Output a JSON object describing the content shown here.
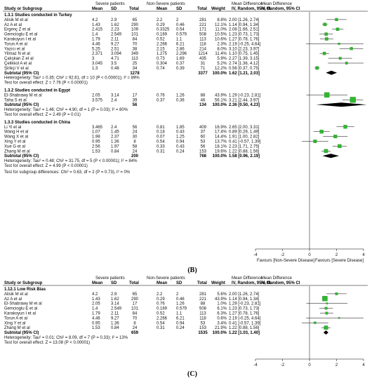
{
  "panel_b": {
    "label": "(B)",
    "header": {
      "group_severe": "Severe patients",
      "group_nonsevere": "Non-Severe patients",
      "md_title": "Mean Difference",
      "study": "Study or Subgroup",
      "mean": "Mean",
      "sd": "SD",
      "total": "Total",
      "weight": "Weight",
      "ci_left": "IV, Random, 95% CI",
      "ci_right": "IV, Random, 95% CI"
    },
    "subgroups": [
      {
        "title": "1.3.1 Studies conducted in Turkey",
        "rows": [
          {
            "study": "Alisik M et al",
            "m1": "4.2",
            "sd1": "2.9",
            "n1": "65",
            "m2": "2.2",
            "sd2": "2",
            "n2": "281",
            "w": "8.8%",
            "ci": "2.00 [1.26, 2.74]",
            "md": 2.0,
            "lo": 1.26,
            "hi": 2.74
          },
          {
            "study": "Az A et al",
            "m1": "1.43",
            "sd1": "1.62",
            "n1": "290",
            "m2": "0.29",
            "sd2": "0.46",
            "n2": "221",
            "w": "12.1%",
            "ci": "1.14 [0.94, 1.34]",
            "md": 1.14,
            "lo": 0.94,
            "hi": 1.34
          },
          {
            "study": "Ergenç Z et al",
            "m1": "2.415",
            "sd1": "2.23",
            "n1": "109",
            "m2": "0.3325",
            "sd2": "0.54",
            "n2": "171",
            "w": "11.0%",
            "ci": "2.08 [1.66, 2.51]",
            "md": 2.08,
            "lo": 1.66,
            "hi": 2.51
          },
          {
            "study": "Gemcioglu E et al",
            "m1": "1.4",
            "sd1": "2.549",
            "n1": "101",
            "m2": "0.169",
            "sd2": "0.579",
            "n2": "508",
            "w": "10.5%",
            "ci": "1.23 [0.73, 1.73]",
            "md": 1.23,
            "lo": 0.73,
            "hi": 1.73
          },
          {
            "study": "Karakoyun I et al",
            "m1": "1.79",
            "sd1": "2.11",
            "n1": "84",
            "m2": "0.52",
            "sd2": "1.1",
            "n2": "113",
            "w": "10.6%",
            "ci": "1.27 [0.78, 1.76]",
            "md": 1.27,
            "lo": 0.78,
            "hi": 1.76
          },
          {
            "study": "Torun A et al",
            "m1": "4.46",
            "sd1": "9.27",
            "n1": "70",
            "m2": "2.266",
            "sd2": "6.21",
            "n2": "118",
            "w": "2.3%",
            "ci": "2.19 [-0.25, 4.64]",
            "md": 2.19,
            "lo": -0.25,
            "hi": 4.64
          },
          {
            "study": "Yazıcı et al",
            "m1": "5.25",
            "sd1": "2.51",
            "n1": "38",
            "m2": "2.15",
            "sd2": "2.86",
            "n2": "214",
            "w": "8.0%",
            "ci": "3.10 [2.23, 3.97]",
            "md": 3.1,
            "lo": 2.23,
            "hi": 3.97
          },
          {
            "study": "Yilmaz N et al",
            "m1": "2.371",
            "sd1": "3.094",
            "n1": "349",
            "m2": "1.275",
            "sd2": "2.296",
            "n2": "1214",
            "w": "11.4%",
            "ci": "1.10 [0.75, 1.45]",
            "md": 1.1,
            "lo": 0.75,
            "hi": 1.45
          },
          {
            "study": "Çalışkan Z et al",
            "m1": "3",
            "sd1": "4.71",
            "n1": "113",
            "m2": "0.73",
            "sd2": "1.69",
            "n2": "435",
            "w": "5.9%",
            "ci": "2.27 [1.39, 3.15]",
            "md": 2.27,
            "lo": 1.39,
            "hi": 3.15
          },
          {
            "study": "Çelikkol A et al",
            "m1": "3.045",
            "sd1": "3.5",
            "n1": "25",
            "m2": "0.304",
            "sd2": "0.37",
            "n2": "31",
            "w": "5.2%",
            "ci": "2.74 [1.36, 4.12]",
            "md": 2.74,
            "lo": 1.36,
            "hi": 4.12
          },
          {
            "study": "Şirikçi V et al",
            "m1": "1.3",
            "sd1": "0.48",
            "n1": "34",
            "m2": "0.74",
            "sd2": "0.39",
            "n2": "71",
            "w": "12.2%",
            "ci": "0.56 [0.37, 0.75]",
            "md": 0.56,
            "lo": 0.37,
            "hi": 0.75
          }
        ],
        "subtotal": {
          "label": "Subtotal (95% CI)",
          "n1": "1278",
          "n2": "3377",
          "w": "100.0%",
          "ci": "1.62 [1.21, 2.03]",
          "md": 1.62,
          "lo": 1.21,
          "hi": 2.03
        },
        "heterogeneity": "Heterogeneity: Tau² = 0.35; Chi² = 92.61, df = 10 (P < 0.00001); I² = 89%",
        "overall": "Test for overall effect: Z = 7.76 (P < 0.00001)"
      },
      {
        "title": "1.3.2 Studies conducted in Egypt",
        "rows": [
          {
            "study": "El-Shabrawy M et al",
            "m1": "2.05",
            "sd1": "3.14",
            "n1": "17",
            "m2": "0.76",
            "sd2": "1.26",
            "n2": "88",
            "w": "43.9%",
            "ci": "1.29 [-0.23, 2.81]",
            "md": 1.29,
            "lo": -0.23,
            "hi": 2.81
          },
          {
            "study": "Taha S et al",
            "m1": "3.575",
            "sd1": "2.4",
            "n1": "39",
            "m2": "0.37",
            "sd2": "0.36",
            "n2": "46",
            "w": "56.1%",
            "ci": "3.21 [2.44, 3.97]",
            "md": 3.21,
            "lo": 2.44,
            "hi": 3.97
          }
        ],
        "subtotal": {
          "label": "Subtotal (95% CI)",
          "n1": "56",
          "n2": "134",
          "w": "100.0%",
          "ci": "2.36 [0.50, 4.23]",
          "md": 2.36,
          "lo": 0.5,
          "hi": 4.23
        },
        "heterogeneity": "Heterogeneity: Tau² = 1.46; Chi² = 4.90, df = 1 (P = 0.03); I² = 80%",
        "overall": "Test for overall effect: Z = 2.49 (P = 0.01)"
      },
      {
        "title": "1.3.3 Studies conducted in China",
        "rows": [
          {
            "study": "Li Yi et al",
            "m1": "3.465",
            "sd1": "2.4",
            "n1": "56",
            "m2": "0.81",
            "sd2": "1.85",
            "n2": "409",
            "w": "16.9%",
            "ci": "2.65 [2.00, 3.31]",
            "md": 2.65,
            "lo": 2.0,
            "hi": 3.31
          },
          {
            "study": "Wang H et al",
            "m1": "1.07",
            "sd1": "1.45",
            "n1": "24",
            "m2": "0.18",
            "sd2": "0.43",
            "n2": "37",
            "w": "17.4%",
            "ci": "0.89 [0.29, 1.49]",
            "md": 0.89,
            "lo": 0.29,
            "hi": 1.49
          },
          {
            "study": "Wang X et al",
            "m1": "1.98",
            "sd1": "2.37",
            "n1": "30",
            "m2": "0.07",
            "sd2": "1.25",
            "n2": "60",
            "w": "14.4%",
            "ci": "1.91 [1.00, 2.82]",
            "md": 1.91,
            "lo": 1.0,
            "hi": 2.82
          },
          {
            "study": "Xing Y et al",
            "m1": "0.95",
            "sd1": "1.36",
            "n1": "8",
            "m2": "0.54",
            "sd2": "0.94",
            "n2": "53",
            "w": "13.7%",
            "ci": "0.41 [-0.57, 1.39]",
            "md": 0.41,
            "lo": -0.57,
            "hi": 1.39
          },
          {
            "study": "Xue G et al",
            "m1": "2.56",
            "sd1": "1.97",
            "n1": "58",
            "m2": "0.33",
            "sd2": "0.43",
            "n2": "56",
            "w": "18.1%",
            "ci": "2.23 [1.71, 2.75]",
            "md": 2.23,
            "lo": 1.71,
            "hi": 2.75
          },
          {
            "study": "Zhang M et al",
            "m1": "1.53",
            "sd1": "0.84",
            "n1": "24",
            "m2": "0.31",
            "sd2": "0.24",
            "n2": "153",
            "w": "19.6%",
            "ci": "1.22 [0.88, 1.56]",
            "md": 1.22,
            "lo": 0.88,
            "hi": 1.56
          }
        ],
        "subtotal": {
          "label": "Subtotal (95% CI)",
          "n1": "200",
          "n2": "768",
          "w": "100.0%",
          "ci": "1.58 [0.96, 2.19]",
          "md": 1.58,
          "lo": 0.96,
          "hi": 2.19
        },
        "heterogeneity": "Heterogeneity: Tau² = 0.48; Chi² = 31.75, df = 5 (P < 0.00001); I² = 84%",
        "overall": "Test for overall effect: Z = 4.99 (P < 0.00001)"
      }
    ],
    "subgroup_diff": "Test for subgroup differences: Chi² = 0.63, df = 2 (P = 0.73), I² = 0%",
    "axis": {
      "min": -4,
      "max": 4,
      "ticks": [
        "-4",
        "-2",
        "0",
        "2",
        "4"
      ],
      "tick_values": [
        -4,
        -2,
        0,
        2,
        4
      ],
      "left_label": "Favours [Non-Severe Disease]",
      "right_label": "Favours [Severe Disease]"
    }
  },
  "panel_c": {
    "label": "(C)",
    "header": {
      "group_severe": "Severe patients",
      "group_nonsevere": "Non-Severe patients",
      "md_title": "Mean Difference",
      "study": "Study or Subgroup",
      "mean": "Mean",
      "sd": "SD",
      "total": "Total",
      "weight": "Weight",
      "ci_left": "IV, Random, 95% CI",
      "ci_right": "IV, Random, 95% CI"
    },
    "subgroups": [
      {
        "title": "1.12.1 Low Risk Bias",
        "rows": [
          {
            "study": "Alisik M et al",
            "m1": "4.2",
            "sd1": "2.9",
            "n1": "65",
            "m2": "2.2",
            "sd2": "2",
            "n2": "281",
            "w": "5.6%",
            "ci": "2.00 [1.26, 2.74]",
            "md": 2.0,
            "lo": 1.26,
            "hi": 2.74
          },
          {
            "study": "Az A et al",
            "m1": "1.43",
            "sd1": "1.62",
            "n1": "290",
            "m2": "0.29",
            "sd2": "0.46",
            "n2": "221",
            "w": "43.9%",
            "ci": "1.14 [0.94, 1.34]",
            "md": 1.14,
            "lo": 0.94,
            "hi": 1.34
          },
          {
            "study": "El-Shabrawy M et al",
            "m1": "2.05",
            "sd1": "3.14",
            "n1": "17",
            "m2": "0.76",
            "sd2": "1.26",
            "n2": "88",
            "w": "1.0%",
            "ci": "1.29 [-0.23, 2.81]",
            "md": 1.29,
            "lo": -0.23,
            "hi": 2.81
          },
          {
            "study": "Gemcioglu E et al",
            "m1": "1.4",
            "sd1": "2.549",
            "n1": "101",
            "m2": "0.169",
            "sd2": "0.579",
            "n2": "508",
            "w": "6.1%",
            "ci": "1.23 [0.73, 1.73]",
            "md": 1.23,
            "lo": 0.73,
            "hi": 1.73
          },
          {
            "study": "Karakoyun I et al",
            "m1": "1.79",
            "sd1": "2.11",
            "n1": "84",
            "m2": "0.52",
            "sd2": "1.1",
            "n2": "113",
            "w": "6.3%",
            "ci": "1.27 [0.78, 1.76]",
            "md": 1.27,
            "lo": 0.78,
            "hi": 1.76
          },
          {
            "study": "Torun A et al",
            "m1": "4.46",
            "sd1": "9.27",
            "n1": "70",
            "m2": "2.266",
            "sd2": "6.21",
            "n2": "118",
            "w": "0.6%",
            "ci": "2.19 [-0.25, 4.64]",
            "md": 2.19,
            "lo": -0.25,
            "hi": 4.64
          },
          {
            "study": "Xing Y et al",
            "m1": "0.95",
            "sd1": "1.36",
            "n1": "8",
            "m2": "0.54",
            "sd2": "0.94",
            "n2": "53",
            "w": "3.4%",
            "ci": "0.41 [-0.57, 1.39]",
            "md": 0.41,
            "lo": -0.57,
            "hi": 1.39
          },
          {
            "study": "Zhang M et al",
            "m1": "1.53",
            "sd1": "0.84",
            "n1": "24",
            "m2": "0.31",
            "sd2": "0.24",
            "n2": "153",
            "w": "21.9%",
            "ci": "1.22 [0.88, 1.56]",
            "md": 1.22,
            "lo": 0.88,
            "hi": 1.56
          }
        ],
        "subtotal": {
          "label": "Subtotal (95% CI)",
          "n1": "659",
          "n2": "1535",
          "w": "100.0%",
          "ci": "1.22 [1.03, 1.40]",
          "md": 1.22,
          "lo": 1.03,
          "hi": 1.4
        },
        "heterogeneity": "Heterogeneity: Tau² = 0.01; Chi² = 8.09, df = 7 (P = 0.33); I² = 13%",
        "overall": "Test for overall effect: Z = 13.08 (P < 0.00001)"
      }
    ],
    "axis": {
      "min": -4,
      "max": 4,
      "ticks": [
        "-4",
        "-2",
        "0",
        "2",
        "4"
      ],
      "tick_values": [
        -4,
        -2,
        0,
        2,
        4
      ]
    }
  },
  "colors": {
    "square": "#2eb82e",
    "square_stroke": "#1a7a1a",
    "diamond": "#000000",
    "header_rule": "#000000"
  }
}
